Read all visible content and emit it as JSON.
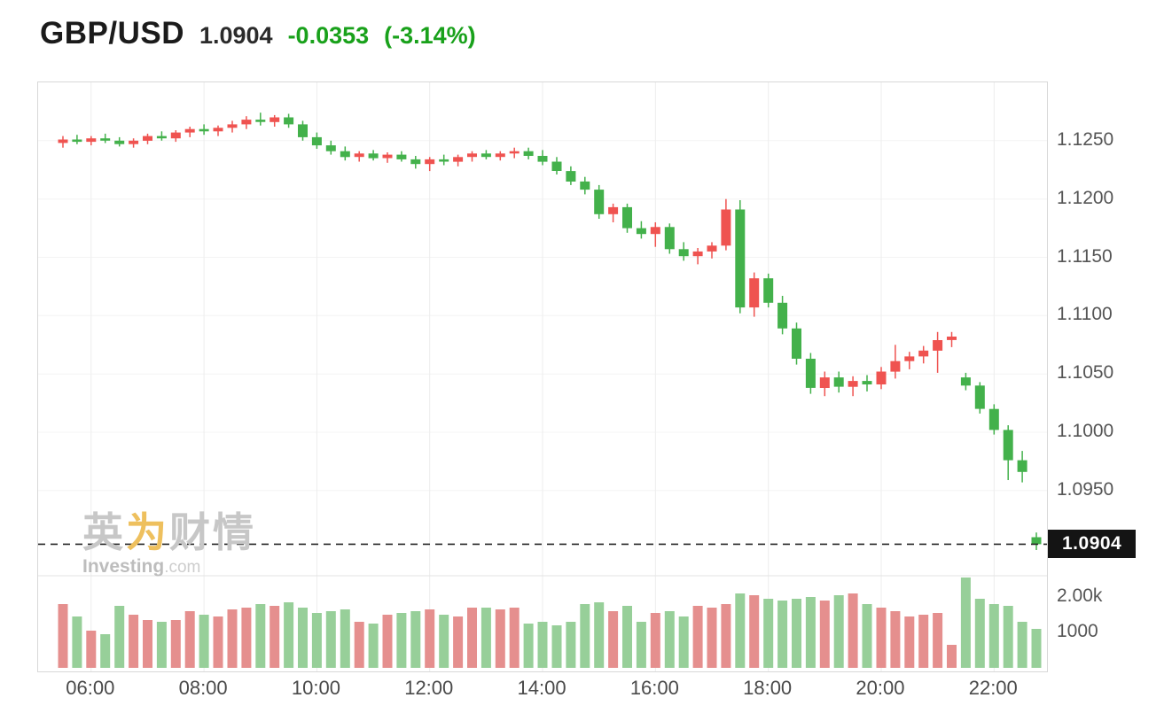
{
  "header": {
    "symbol": "GBP/USD",
    "price": "1.0904",
    "change": "-0.0353",
    "change_pct": "(-3.14%)",
    "change_color": "#19a11b"
  },
  "watermark": {
    "cn_prefix": "英",
    "cn_accent": "为",
    "cn_suffix": "财情",
    "en": "Investing",
    "en_suffix": ".com"
  },
  "axes": {
    "y_ticks": [
      1.125,
      1.12,
      1.115,
      1.11,
      1.105,
      1.1,
      1.095
    ],
    "y_tick_labels": [
      "1.1250",
      "1.1200",
      "1.1150",
      "1.1100",
      "1.1050",
      "1.1000",
      "1.0950"
    ],
    "x_tick_labels": [
      "06:00",
      "08:00",
      "10:00",
      "12:00",
      "14:00",
      "16:00",
      "18:00",
      "20:00",
      "22:00"
    ],
    "x_tick_indices": [
      2,
      10,
      18,
      26,
      34,
      42,
      50,
      58,
      66
    ],
    "volume_tick_labels": [
      "2.00k",
      "1000"
    ],
    "volume_tick_values": [
      2000,
      1000
    ]
  },
  "chart_data": {
    "type": "candlestick+volume",
    "title": "GBP/USD 15-minute candles with volume",
    "last_price": 1.0904,
    "last_price_label": "1.0904",
    "price_range": [
      1.088,
      1.13
    ],
    "volume_range": [
      0,
      2800
    ],
    "up_color": "#ef5350",
    "down_color": "#43b14b",
    "vol_up_color": "#e58f8e",
    "vol_down_color": "#97cf99",
    "grid_color": "#ededed",
    "candle_format": [
      "time",
      "open",
      "high",
      "low",
      "close"
    ],
    "candles": [
      [
        "05:30",
        1.1248,
        1.1254,
        1.1244,
        1.1251
      ],
      [
        "05:45",
        1.1251,
        1.1255,
        1.1247,
        1.1249
      ],
      [
        "06:00",
        1.1249,
        1.1254,
        1.1246,
        1.1252
      ],
      [
        "06:15",
        1.1252,
        1.1256,
        1.1248,
        1.125
      ],
      [
        "06:30",
        1.125,
        1.1253,
        1.1245,
        1.1247
      ],
      [
        "06:45",
        1.1247,
        1.1252,
        1.1244,
        1.125
      ],
      [
        "07:00",
        1.125,
        1.1256,
        1.1247,
        1.1254
      ],
      [
        "07:15",
        1.1254,
        1.1258,
        1.125,
        1.1252
      ],
      [
        "07:30",
        1.1252,
        1.1259,
        1.1249,
        1.1257
      ],
      [
        "07:45",
        1.1257,
        1.1262,
        1.1253,
        1.126
      ],
      [
        "08:00",
        1.126,
        1.1264,
        1.1255,
        1.1258
      ],
      [
        "08:15",
        1.1258,
        1.1263,
        1.1254,
        1.1261
      ],
      [
        "08:30",
        1.1261,
        1.1267,
        1.1257,
        1.1264
      ],
      [
        "08:45",
        1.1264,
        1.1271,
        1.126,
        1.1268
      ],
      [
        "09:00",
        1.1268,
        1.1274,
        1.1263,
        1.1266
      ],
      [
        "09:15",
        1.1266,
        1.1272,
        1.1262,
        1.127
      ],
      [
        "09:30",
        1.127,
        1.1273,
        1.1261,
        1.1264
      ],
      [
        "09:45",
        1.1264,
        1.1267,
        1.125,
        1.1253
      ],
      [
        "10:00",
        1.1253,
        1.1257,
        1.1243,
        1.1246
      ],
      [
        "10:15",
        1.1246,
        1.125,
        1.1238,
        1.1241
      ],
      [
        "10:30",
        1.1241,
        1.1245,
        1.1233,
        1.1236
      ],
      [
        "10:45",
        1.1236,
        1.1241,
        1.1232,
        1.1239
      ],
      [
        "11:00",
        1.1239,
        1.1242,
        1.1233,
        1.1235
      ],
      [
        "11:15",
        1.1235,
        1.124,
        1.1231,
        1.1238
      ],
      [
        "11:30",
        1.1238,
        1.1241,
        1.1232,
        1.1234
      ],
      [
        "11:45",
        1.1234,
        1.1237,
        1.1226,
        1.123
      ],
      [
        "12:00",
        1.123,
        1.1236,
        1.1224,
        1.1234
      ],
      [
        "12:15",
        1.1234,
        1.1238,
        1.1229,
        1.1232
      ],
      [
        "12:30",
        1.1232,
        1.1238,
        1.1228,
        1.1236
      ],
      [
        "12:45",
        1.1236,
        1.1241,
        1.1232,
        1.1239
      ],
      [
        "13:00",
        1.1239,
        1.1242,
        1.1234,
        1.1236
      ],
      [
        "13:15",
        1.1236,
        1.1241,
        1.1233,
        1.1239
      ],
      [
        "13:30",
        1.1239,
        1.1244,
        1.1235,
        1.1241
      ],
      [
        "13:45",
        1.1241,
        1.1244,
        1.1234,
        1.1237
      ],
      [
        "14:00",
        1.1237,
        1.1242,
        1.1229,
        1.1232
      ],
      [
        "14:15",
        1.1232,
        1.1236,
        1.1221,
        1.1224
      ],
      [
        "14:30",
        1.1224,
        1.1228,
        1.1212,
        1.1215
      ],
      [
        "14:45",
        1.1215,
        1.1219,
        1.1204,
        1.1208
      ],
      [
        "15:00",
        1.1208,
        1.1212,
        1.1183,
        1.1187
      ],
      [
        "15:15",
        1.1187,
        1.1196,
        1.118,
        1.1193
      ],
      [
        "15:30",
        1.1193,
        1.1196,
        1.1171,
        1.1175
      ],
      [
        "15:45",
        1.1175,
        1.1181,
        1.1166,
        1.117
      ],
      [
        "16:00",
        1.117,
        1.118,
        1.1159,
        1.1176
      ],
      [
        "16:15",
        1.1176,
        1.1179,
        1.1153,
        1.1157
      ],
      [
        "16:30",
        1.1157,
        1.1163,
        1.1147,
        1.1151
      ],
      [
        "16:45",
        1.1151,
        1.1158,
        1.1144,
        1.1155
      ],
      [
        "17:00",
        1.1155,
        1.1163,
        1.1149,
        1.116
      ],
      [
        "17:15",
        1.116,
        1.12,
        1.1156,
        1.1191
      ],
      [
        "17:30",
        1.1191,
        1.1199,
        1.1102,
        1.1107
      ],
      [
        "17:45",
        1.1107,
        1.1137,
        1.1099,
        1.1132
      ],
      [
        "18:00",
        1.1132,
        1.1136,
        1.1107,
        1.1111
      ],
      [
        "18:15",
        1.1111,
        1.1117,
        1.1084,
        1.1089
      ],
      [
        "18:30",
        1.1089,
        1.1094,
        1.1058,
        1.1063
      ],
      [
        "18:45",
        1.1063,
        1.1068,
        1.1033,
        1.1038
      ],
      [
        "19:00",
        1.1038,
        1.1052,
        1.1031,
        1.1047
      ],
      [
        "19:15",
        1.1047,
        1.1052,
        1.1034,
        1.1039
      ],
      [
        "19:30",
        1.1039,
        1.1048,
        1.1031,
        1.1044
      ],
      [
        "19:45",
        1.1044,
        1.1049,
        1.1035,
        1.1041
      ],
      [
        "20:00",
        1.1041,
        1.1056,
        1.1037,
        1.1052
      ],
      [
        "20:15",
        1.1052,
        1.1075,
        1.1046,
        1.1061
      ],
      [
        "20:30",
        1.1061,
        1.1069,
        1.1054,
        1.1065
      ],
      [
        "20:45",
        1.1065,
        1.1074,
        1.1059,
        1.107
      ],
      [
        "21:00",
        1.107,
        1.1086,
        1.1051,
        1.1079
      ],
      [
        "21:15",
        1.1079,
        1.1086,
        1.1073,
        1.1082
      ],
      [
        "21:30",
        1.1047,
        1.1051,
        1.1036,
        1.104
      ],
      [
        "21:45",
        1.104,
        1.1043,
        1.1016,
        1.102
      ],
      [
        "22:00",
        1.102,
        1.1024,
        1.0998,
        1.1002
      ],
      [
        "22:15",
        1.1002,
        1.1006,
        1.0959,
        1.0976
      ],
      [
        "22:30",
        1.0976,
        1.0984,
        1.0957,
        1.0966
      ],
      [
        "22:45",
        1.091,
        1.0914,
        1.0899,
        1.0904
      ]
    ],
    "volumes": [
      1800,
      1450,
      1050,
      950,
      1750,
      1500,
      1350,
      1300,
      1350,
      1600,
      1500,
      1450,
      1650,
      1700,
      1800,
      1750,
      1850,
      1700,
      1550,
      1600,
      1650,
      1300,
      1250,
      1500,
      1550,
      1600,
      1650,
      1500,
      1450,
      1700,
      1700,
      1650,
      1700,
      1250,
      1300,
      1200,
      1300,
      1800,
      1850,
      1600,
      1750,
      1300,
      1550,
      1600,
      1450,
      1750,
      1700,
      1800,
      2100,
      2050,
      1950,
      1900,
      1950,
      2000,
      1900,
      2050,
      2100,
      1800,
      1700,
      1600,
      1450,
      1500,
      1550,
      650,
      2550,
      1950,
      1800,
      1750,
      1300,
      1100
    ]
  }
}
